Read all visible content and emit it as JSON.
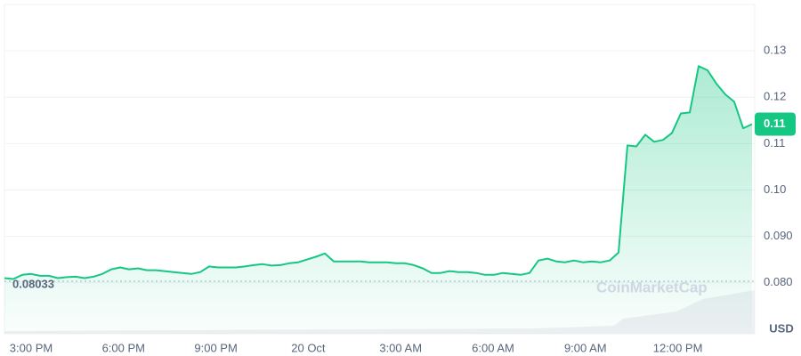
{
  "chart_data": {
    "type": "line",
    "series": [
      {
        "color": "#16c784",
        "values": [
          0.081,
          0.0808,
          0.0817,
          0.0819,
          0.0815,
          0.0815,
          0.081,
          0.0812,
          0.0813,
          0.081,
          0.0813,
          0.0819,
          0.0829,
          0.0833,
          0.0829,
          0.0831,
          0.0827,
          0.0827,
          0.0825,
          0.0823,
          0.0821,
          0.0819,
          0.0823,
          0.0835,
          0.0833,
          0.0833,
          0.0833,
          0.0835,
          0.0838,
          0.084,
          0.0837,
          0.0838,
          0.0842,
          0.0844,
          0.085,
          0.0856,
          0.0863,
          0.0846,
          0.0846,
          0.0846,
          0.0846,
          0.0844,
          0.0844,
          0.0844,
          0.0842,
          0.0842,
          0.0838,
          0.0831,
          0.0821,
          0.0821,
          0.0825,
          0.0823,
          0.0823,
          0.0821,
          0.0817,
          0.0817,
          0.0821,
          0.0819,
          0.0817,
          0.0821,
          0.0848,
          0.0852,
          0.0846,
          0.0844,
          0.0848,
          0.0844,
          0.0846,
          0.0844,
          0.0848,
          0.0865,
          0.1096,
          0.1094,
          0.1119,
          0.1104,
          0.1108,
          0.1123,
          0.1165,
          0.1167,
          0.1267,
          0.1258,
          0.1229,
          0.1206,
          0.119,
          0.1133,
          0.1142
        ]
      }
    ],
    "current_price": {
      "value": 0.1142,
      "label": "0.11"
    },
    "start_price": 0.08033,
    "xticks": [
      "3:00 PM",
      "6:00 PM",
      "9:00 PM",
      "20 Oct",
      "3:00 AM",
      "6:00 AM",
      "9:00 AM",
      "12:00 PM"
    ],
    "ylim": [
      0.069,
      0.14
    ],
    "yticks": [
      {
        "value": 0.08,
        "label": "0.080"
      },
      {
        "value": 0.09,
        "label": "0.090"
      },
      {
        "value": 0.1,
        "label": "0.10"
      },
      0.11,
      0.12,
      0.13
    ],
    "y_unit": "USD",
    "watermark": "CoinMarketCap",
    "grid": true
  }
}
